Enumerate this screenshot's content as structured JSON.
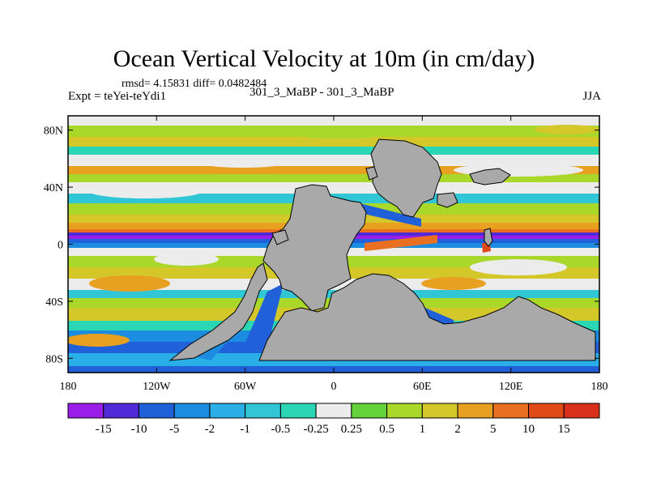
{
  "header": {
    "title": "Ocean Vertical Velocity at 10m (in cm/day)",
    "stats": "rmsd= 4.15831 diff= 0.0482484",
    "experiment": "Expt = teYei-teYdi1",
    "cases": "301_3_MaBP - 301_3_MaBP",
    "season": "JJA"
  },
  "chart_data": {
    "type": "heatmap",
    "title": "Ocean Vertical Velocity at 10m (in cm/day)",
    "subtitle": "301_3_MaBP - 301_3_MaBP",
    "variable": "vertical velocity",
    "units": "cm/day",
    "x_ticks": [
      "180",
      "120W",
      "60W",
      "0",
      "60E",
      "120E",
      "180"
    ],
    "x_values": [
      -180,
      -120,
      -60,
      0,
      60,
      120,
      180
    ],
    "y_ticks": [
      "80N",
      "40N",
      "0",
      "40S",
      "80S"
    ],
    "y_values": [
      80,
      40,
      0,
      -40,
      -80
    ],
    "xlim": [
      -180,
      180
    ],
    "ylim": [
      -90,
      90
    ],
    "colorbar": {
      "levels": [
        "-15",
        "-10",
        "-5",
        "-2",
        "-1",
        "-0.5",
        "-0.25",
        "0.25",
        "0.5",
        "1",
        "2",
        "5",
        "10",
        "15"
      ],
      "colors": [
        "#9a1ee8",
        "#4f2ad6",
        "#2060d8",
        "#1b8ce0",
        "#2aaee6",
        "#30c6d6",
        "#2ad6b4",
        "#ececec",
        "#64d23a",
        "#a9d72a",
        "#d4c72a",
        "#e8a020",
        "#e87020",
        "#e04a18",
        "#d8301a"
      ]
    },
    "land_color": "#a9a9a9"
  }
}
